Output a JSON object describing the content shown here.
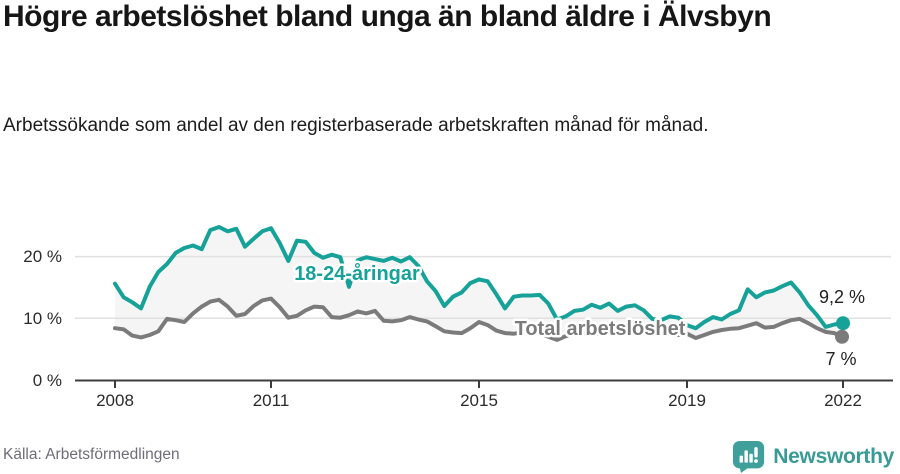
{
  "header": {
    "title": "Högre arbetslöshet bland unga än bland äldre i Älvsbyn",
    "subtitle": "Arbetssökande som andel av den registerbaserade arbetskraften månad för månad."
  },
  "footer": {
    "source": "Källa: Arbetsförmedlingen",
    "logo_text": "Newsworthy"
  },
  "colors": {
    "youth_line": "#16a199",
    "total_line": "#7b7b7b",
    "band_fill": "#f5f5f5",
    "gridline": "#e0e0e0",
    "axis": "#3c3c3c",
    "tick_text": "#2b2b2b",
    "source_text": "#6e6e78",
    "logo_teal": "#3a9b96"
  },
  "chart_data": {
    "type": "line",
    "title": "Högre arbetslöshet bland unga än bland äldre i Älvsbyn",
    "subtitle": "Arbetssökande som andel av den registerbaserade arbetskraften månad för månad.",
    "y_unit": "%",
    "x_start_year": 2008,
    "x_step_years": 0.16667,
    "x_ticks": [
      {
        "value": 2008,
        "label": "2008"
      },
      {
        "value": 2011,
        "label": "2011"
      },
      {
        "value": 2015,
        "label": "2015"
      },
      {
        "value": 2019,
        "label": "2019"
      },
      {
        "value": 2022,
        "label": "2022"
      }
    ],
    "y_ticks": [
      {
        "value": 0,
        "label": "0 %"
      },
      {
        "value": 10,
        "label": "10 %"
      },
      {
        "value": 20,
        "label": "20 %"
      }
    ],
    "ylim": [
      0,
      27
    ],
    "grid": "horizontal",
    "legend": "inline-labels",
    "series": [
      {
        "name": "18-24-åringar",
        "color": "#16a199",
        "end_label": "9,2 %",
        "end_value": 9.2,
        "values": [
          15.6,
          13.4,
          12.6,
          11.6,
          15.1,
          17.5,
          18.8,
          20.6,
          21.4,
          21.8,
          21.2,
          24.3,
          24.8,
          24.1,
          24.5,
          21.6,
          22.9,
          24.1,
          24.6,
          22.2,
          19.3,
          22.6,
          22.4,
          20.6,
          19.8,
          20.3,
          19.9,
          15.1,
          19.4,
          19.9,
          19.6,
          19.3,
          19.8,
          19.2,
          19.9,
          18.5,
          16.0,
          14.4,
          12.0,
          13.5,
          14.2,
          15.7,
          16.3,
          16.0,
          13.9,
          11.6,
          13.5,
          13.7,
          13.7,
          13.8,
          12.4,
          9.8,
          10.3,
          11.2,
          11.4,
          12.2,
          11.7,
          12.4,
          11.2,
          11.9,
          12.1,
          11.3,
          9.9,
          9.7,
          10.3,
          10.1,
          8.9,
          8.4,
          9.4,
          10.2,
          9.8,
          10.7,
          11.3,
          14.7,
          13.4,
          14.2,
          14.5,
          15.2,
          15.8,
          14.2,
          12.1,
          10.5,
          8.6,
          9.0,
          9.2
        ]
      },
      {
        "name": "Total arbetslöshet",
        "color": "#7b7b7b",
        "end_label": "7 %",
        "end_value": 7.0,
        "values": [
          8.4,
          8.2,
          7.2,
          6.9,
          7.3,
          7.9,
          9.9,
          9.7,
          9.4,
          10.8,
          11.9,
          12.7,
          13.0,
          11.9,
          10.4,
          10.7,
          12.0,
          12.9,
          13.2,
          11.8,
          10.1,
          10.4,
          11.3,
          11.9,
          11.8,
          10.2,
          10.1,
          10.5,
          11.1,
          10.8,
          11.2,
          9.6,
          9.5,
          9.7,
          10.2,
          9.8,
          9.5,
          8.7,
          7.9,
          7.7,
          7.6,
          8.4,
          9.4,
          8.9,
          8.0,
          7.6,
          7.5,
          7.7,
          7.8,
          7.6,
          7.0,
          6.5,
          7.1,
          7.4,
          7.5,
          7.6,
          7.5,
          7.7,
          7.5,
          7.6,
          7.7,
          7.6,
          7.5,
          7.4,
          7.5,
          7.3,
          7.5,
          6.8,
          7.3,
          7.8,
          8.1,
          8.3,
          8.4,
          8.8,
          9.2,
          8.5,
          8.6,
          9.2,
          9.7,
          9.9,
          9.2,
          8.4,
          7.8,
          7.6,
          7.0
        ]
      }
    ]
  }
}
